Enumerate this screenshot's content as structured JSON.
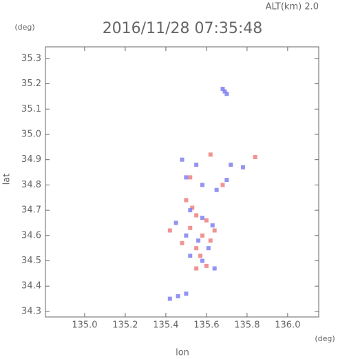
{
  "chart_data": {
    "type": "scatter",
    "title": "2016/11/28 07:35:48",
    "annotations": [
      "ALT(km) 2.0"
    ],
    "x_label": "lon",
    "y_label": "lat",
    "x_unit": "(deg)",
    "y_unit": "(deg)",
    "xlim": [
      134.807,
      136.153
    ],
    "ylim": [
      34.278,
      35.346
    ],
    "xticks": [
      {
        "value": 135.0,
        "label": "135.0"
      },
      135.2,
      135.4,
      135.6,
      135.8,
      {
        "value": 136.0,
        "label": "136.0"
      }
    ],
    "yticks": [
      35.3,
      35.2,
      35.1,
      {
        "value": 35.0,
        "label": "35.0"
      },
      34.9,
      34.8,
      34.7,
      34.6,
      34.5,
      34.4,
      34.3
    ],
    "series": [
      {
        "color": "#f08080",
        "x": [
          135.62,
          135.52,
          135.68,
          135.5,
          135.55,
          135.6,
          135.52,
          135.58,
          135.62,
          135.48,
          135.55,
          135.57,
          135.6,
          135.55,
          135.42,
          135.64,
          135.84,
          135.53
        ],
        "values": [
          34.92,
          34.83,
          34.8,
          34.74,
          34.68,
          34.66,
          34.63,
          34.6,
          34.58,
          34.57,
          34.55,
          34.52,
          34.48,
          34.47,
          34.62,
          34.62,
          34.91,
          34.71
        ]
      },
      {
        "color": "#8080f0",
        "x": [
          135.69,
          135.68,
          135.7,
          135.48,
          135.55,
          135.72,
          135.78,
          135.5,
          135.58,
          135.65,
          135.7,
          135.52,
          135.58,
          135.45,
          135.63,
          135.5,
          135.56,
          135.61,
          135.52,
          135.58,
          135.64,
          135.42,
          135.46,
          135.5
        ],
        "values": [
          35.17,
          35.18,
          35.16,
          34.9,
          34.88,
          34.88,
          34.87,
          34.83,
          34.8,
          34.78,
          34.82,
          34.7,
          34.67,
          34.65,
          34.64,
          34.6,
          34.58,
          34.55,
          34.52,
          34.5,
          34.47,
          34.35,
          34.36,
          34.37
        ]
      }
    ]
  }
}
